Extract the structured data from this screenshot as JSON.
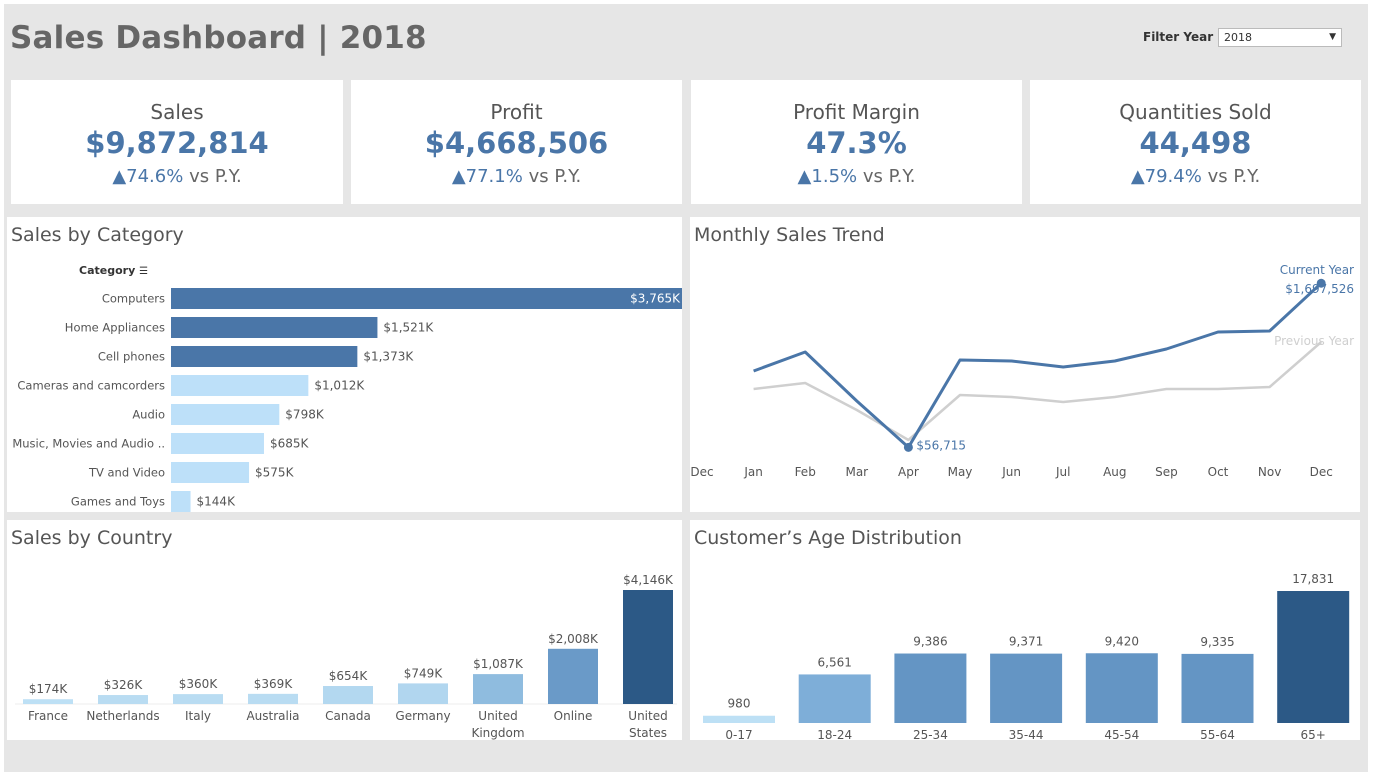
{
  "dashboard": {
    "title": "Sales Dashboard | 2018",
    "filter_label": "Filter Year",
    "filter_value": "2018"
  },
  "kpis": [
    {
      "label": "Sales",
      "value": "$9,872,814",
      "change": "74.6%",
      "suffix": "vs P.Y."
    },
    {
      "label": "Profit",
      "value": "$4,668,506",
      "change": "77.1%",
      "suffix": "vs P.Y."
    },
    {
      "label": "Profit Margin",
      "value": "47.3%",
      "change": "1.5%",
      "suffix": "vs P.Y."
    },
    {
      "label": "Quantities Sold",
      "value": "44,498",
      "change": "79.4%",
      "suffix": "vs P.Y."
    }
  ],
  "panels": {
    "category_title": "Sales by Category",
    "category_header": "Category",
    "trend_title": "Monthly Sales Trend",
    "country_title": "Sales by Country",
    "age_title": "Customer’s Age Distribution"
  },
  "colors": {
    "dark_blue": "#4a76a8",
    "light_blue": "#bde0f9",
    "prev_year": "#cfcfcf",
    "accent": "#4a76a8"
  },
  "chart_data": [
    {
      "type": "bar",
      "orientation": "horizontal",
      "title": "Sales by Category",
      "categories": [
        "Computers",
        "Home Appliances",
        "Cell phones",
        "Cameras and camcorders",
        "Audio",
        "Music, Movies and Audio ..",
        "TV and Video",
        "Games and Toys"
      ],
      "values": [
        3765,
        1521,
        1373,
        1012,
        798,
        685,
        575,
        144
      ],
      "labels": [
        "$3,765K",
        "$1,521K",
        "$1,373K",
        "$1,012K",
        "$798K",
        "$685K",
        "$575K",
        "$144K"
      ],
      "highlight": [
        true,
        true,
        true,
        false,
        false,
        false,
        false,
        false
      ]
    },
    {
      "type": "line",
      "title": "Monthly Sales Trend",
      "x": [
        "Dec",
        "Jan",
        "Feb",
        "Mar",
        "Apr",
        "May",
        "Jun",
        "Jul",
        "Aug",
        "Sep",
        "Oct",
        "Nov",
        "Dec",
        "Jan"
      ],
      "series": [
        {
          "name": "Current Year",
          "values": [
            null,
            820000,
            1010000,
            520000,
            56715,
            930000,
            920000,
            860000,
            920000,
            1040000,
            1210000,
            1220000,
            1697526,
            null
          ]
        },
        {
          "name": "Previous Year",
          "values": [
            null,
            640000,
            700000,
            430000,
            130000,
            580000,
            560000,
            510000,
            560000,
            640000,
            640000,
            660000,
            1110000,
            null
          ]
        }
      ],
      "annotations": [
        {
          "label": "$56,715",
          "month": "Apr"
        },
        {
          "label": "$1,697,526",
          "month": "Dec"
        }
      ],
      "ylim": [
        0,
        1800000
      ]
    },
    {
      "type": "bar",
      "title": "Sales by Country",
      "categories": [
        "France",
        "Netherlands",
        "Italy",
        "Australia",
        "Canada",
        "Germany",
        "United Kingdom",
        "Online",
        "United States"
      ],
      "values": [
        174,
        326,
        360,
        369,
        654,
        749,
        1087,
        2008,
        4146
      ],
      "labels": [
        "$174K",
        "$326K",
        "$360K",
        "$369K",
        "$654K",
        "$749K",
        "$1,087K",
        "$2,008K",
        "$4,146K"
      ],
      "colors": [
        "#bde0f5",
        "#b9dcf2",
        "#b9dcf2",
        "#b9dcf2",
        "#b3d8f0",
        "#b1d6ef",
        "#8fbcdf",
        "#6a9ac8",
        "#2c5986"
      ]
    },
    {
      "type": "bar",
      "title": "Customer’s Age Distribution",
      "categories": [
        "0-17",
        "18-24",
        "25-34",
        "35-44",
        "45-54",
        "55-64",
        "65+"
      ],
      "values": [
        980,
        6561,
        9386,
        9371,
        9420,
        9335,
        17831
      ],
      "labels": [
        "980",
        "6,561",
        "9,386",
        "9,371",
        "9,420",
        "9,335",
        "17,831"
      ],
      "colors": [
        "#bde0f5",
        "#7eaed8",
        "#6495c4",
        "#6495c4",
        "#6495c4",
        "#6495c4",
        "#2c5986"
      ]
    }
  ]
}
